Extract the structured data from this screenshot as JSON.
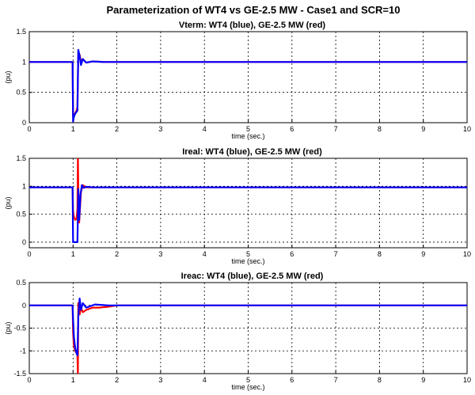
{
  "figure_title": "Parameterization of WT4 vs GE-2.5 MW - Case1 and SCR=10",
  "colors": {
    "wt4": "#0000ff",
    "ge": "#ff0000",
    "grid": "#000000"
  },
  "chart_data": [
    {
      "type": "line",
      "title": "Vterm: WT4 (blue), GE-2.5 MW (red)",
      "xlabel": "time (sec.)",
      "ylabel": "(pu)",
      "xlim": [
        0,
        10
      ],
      "ylim": [
        0,
        1.5
      ],
      "xticks": [
        0,
        1,
        2,
        3,
        4,
        5,
        6,
        7,
        8,
        9,
        10
      ],
      "yticks": [
        0,
        0.5,
        1,
        1.5
      ],
      "ytick_labels": [
        "0",
        "0.5",
        "1",
        "1.5"
      ],
      "grid": true,
      "series": [
        {
          "key": "ge",
          "x": [
            0,
            0.99,
            1.0,
            1.01,
            1.05,
            1.08,
            1.1,
            1.12,
            1.15,
            1.18,
            1.22,
            1.3,
            1.45,
            1.7,
            10
          ],
          "y": [
            1.0,
            1.0,
            0.1,
            0.12,
            0.16,
            0.2,
            0.25,
            1.15,
            1.12,
            1.0,
            1.05,
            0.99,
            1.01,
            1.0,
            1.0
          ]
        },
        {
          "key": "wt4",
          "x": [
            0,
            0.99,
            1.0,
            1.02,
            1.05,
            1.08,
            1.1,
            1.12,
            1.15,
            1.18,
            1.22,
            1.3,
            1.45,
            1.7,
            10
          ],
          "y": [
            1.0,
            1.0,
            0.02,
            0.1,
            0.15,
            0.18,
            0.2,
            1.2,
            1.1,
            0.95,
            1.05,
            0.99,
            1.01,
            1.0,
            1.0
          ]
        }
      ]
    },
    {
      "type": "line",
      "title": "Ireal: WT4 (blue), GE-2.5 MW (red)",
      "xlabel": "time (sec.)",
      "ylabel": "(pu)",
      "xlim": [
        0,
        10
      ],
      "ylim": [
        -0.1,
        1.5
      ],
      "xticks": [
        0,
        1,
        2,
        3,
        4,
        5,
        6,
        7,
        8,
        9,
        10
      ],
      "yticks": [
        0,
        0.5,
        1,
        1.5
      ],
      "ytick_labels": [
        "0",
        "0.5",
        "1",
        "1.5"
      ],
      "grid": true,
      "series": [
        {
          "key": "ge",
          "x": [
            0,
            0.99,
            1.0,
            1.02,
            1.05,
            1.08,
            1.1,
            1.11,
            1.12,
            1.14,
            1.18,
            1.22,
            1.3,
            1.5,
            10
          ],
          "y": [
            0.98,
            0.98,
            0.55,
            0.45,
            0.4,
            0.42,
            0.6,
            1.55,
            1.0,
            0.35,
            0.9,
            1.02,
            0.98,
            0.98,
            0.98
          ]
        },
        {
          "key": "wt4",
          "x": [
            0,
            0.99,
            1.0,
            1.1,
            1.12,
            1.14,
            1.17,
            1.2,
            1.24,
            1.3,
            1.45,
            10
          ],
          "y": [
            0.98,
            0.98,
            0.0,
            0.0,
            0.95,
            0.4,
            0.85,
            1.02,
            0.97,
            0.99,
            0.98,
            0.98
          ]
        }
      ]
    },
    {
      "type": "line",
      "title": "Ireac: WT4 (blue), GE-2.5 MW (red)",
      "xlabel": "time (sec.)",
      "ylabel": "(pu)",
      "xlim": [
        0,
        10
      ],
      "ylim": [
        -1.5,
        0.5
      ],
      "xticks": [
        0,
        1,
        2,
        3,
        4,
        5,
        6,
        7,
        8,
        9,
        10
      ],
      "yticks": [
        -1.5,
        -1,
        -0.5,
        0,
        0.5
      ],
      "ytick_labels": [
        "-1.5",
        "-1",
        "-0.5",
        "0",
        "0.5"
      ],
      "grid": true,
      "series": [
        {
          "key": "ge",
          "x": [
            0,
            0.99,
            1.0,
            1.02,
            1.05,
            1.08,
            1.1,
            1.11,
            1.12,
            1.15,
            1.18,
            1.22,
            1.3,
            1.45,
            1.6,
            1.8,
            2.0,
            10
          ],
          "y": [
            0,
            0,
            -0.6,
            -0.9,
            -1.0,
            -1.05,
            -1.1,
            -1.55,
            0.05,
            -0.2,
            -0.05,
            -0.15,
            -0.1,
            -0.05,
            -0.05,
            -0.03,
            0,
            0
          ]
        },
        {
          "key": "wt4",
          "x": [
            0,
            0.99,
            1.0,
            1.02,
            1.05,
            1.08,
            1.1,
            1.12,
            1.15,
            1.18,
            1.22,
            1.3,
            1.5,
            1.8,
            10
          ],
          "y": [
            0,
            0,
            -0.3,
            -0.7,
            -0.95,
            -1.05,
            -1.1,
            -0.25,
            0.15,
            -0.1,
            0.05,
            -0.05,
            0.02,
            0,
            0
          ]
        }
      ]
    }
  ]
}
